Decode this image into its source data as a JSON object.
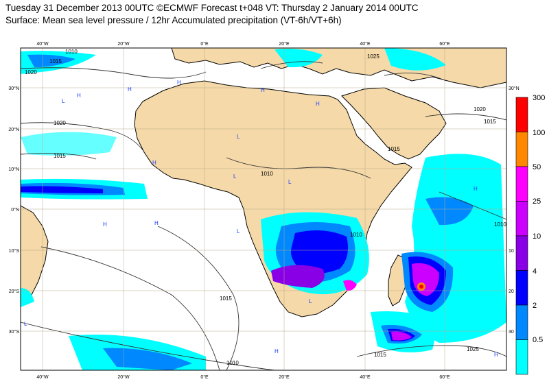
{
  "header": {
    "line1": "Tuesday 31 December 2013 00UTC ©ECMWF Forecast t+048 VT: Thursday 2 January 2014 00UTC",
    "line2": "Surface: Mean sea level pressure / 12hr Accumulated precipitation (VT-6h/VT+6h)"
  },
  "map": {
    "lon_labels": [
      "40°W",
      "20°W",
      "0°E",
      "20°E",
      "40°E",
      "60°E"
    ],
    "lat_labels": [
      "30°N",
      "20°N",
      "10°N",
      "0°N",
      "10°S",
      "20°S",
      "30°S"
    ],
    "right_lat_labels": [
      "30°N",
      "10",
      "20",
      "30"
    ],
    "isobars": [
      "1010",
      "1015",
      "1020",
      "1025"
    ],
    "pressure_centres": [
      "H",
      "L"
    ]
  },
  "legend": {
    "labels": [
      "300",
      "100",
      "50",
      "25",
      "10",
      "4",
      "2",
      "0.5"
    ],
    "colors": [
      "#ff0000",
      "#ff8800",
      "#ff00ff",
      "#cc00ff",
      "#8a00e6",
      "#0000ff",
      "#0088ff",
      "#00ffff"
    ]
  },
  "colors": {
    "land": "#f5d9a8",
    "ocean": "#ffffff",
    "coast": "#000000"
  }
}
